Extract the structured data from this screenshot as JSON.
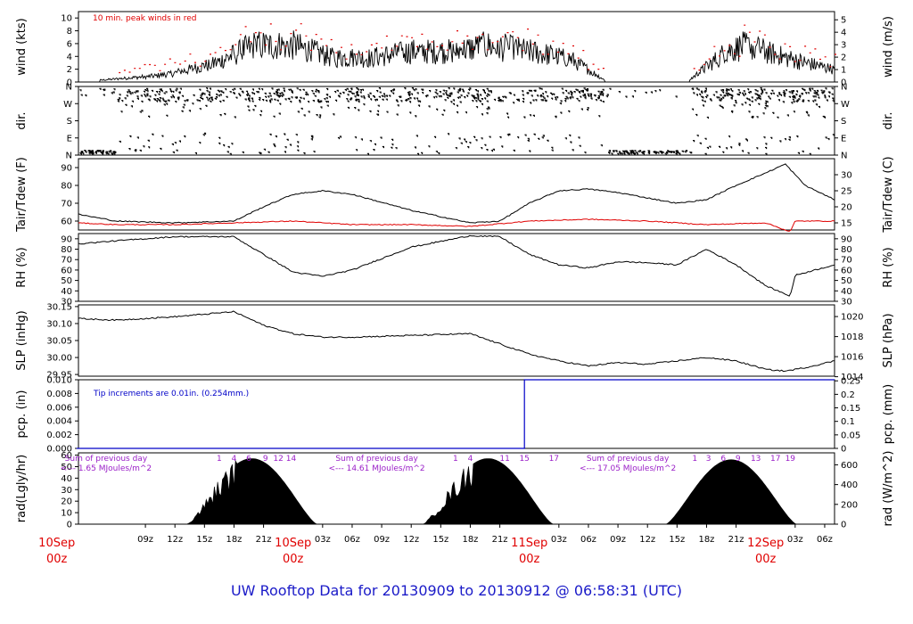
{
  "title": "UW Rooftop Data for 20130909  to  20130912 @ 06:58:31  (UTC)",
  "colors": {
    "title": "#1a1ac8",
    "day": "#e00000",
    "annot": "#9a1fc8",
    "red": "#e00000",
    "blue": "#0000c8"
  },
  "x_axis": {
    "hour_labels": [
      "09z",
      "12z",
      "15z",
      "18z",
      "21z",
      "03z",
      "06z",
      "09z",
      "12z",
      "15z",
      "18z",
      "21z",
      "03z",
      "06z",
      "09z",
      "12z",
      "15z",
      "18z",
      "21z",
      "03z",
      "06z"
    ],
    "hour_values": [
      33,
      36,
      39,
      42,
      45,
      51,
      54,
      57,
      60,
      63,
      66,
      69,
      75,
      78,
      81,
      84,
      87,
      90,
      93,
      99,
      102
    ],
    "day_labels": [
      {
        "date": "10Sep",
        "hour": "00z",
        "t": 24
      },
      {
        "date": "10Sep",
        "hour": "00z",
        "t": 48
      },
      {
        "date": "11Sep",
        "hour": "00z",
        "t": 72
      },
      {
        "date": "12Sep",
        "hour": "00z",
        "t": 96
      }
    ],
    "t_range": [
      26.2,
      103.0
    ]
  },
  "panels": {
    "wind": {
      "ylabel_left": "wind (kts)",
      "ylabel_right": "wind (m/s)",
      "left_ticks": [
        "0",
        "2",
        "4",
        "6",
        "8",
        "10"
      ],
      "right_ticks": [
        "0",
        "1",
        "2",
        "3",
        "4",
        "5"
      ],
      "note": "10 min. peak winds in red"
    },
    "dir": {
      "ylabel_left": "dir.",
      "ylabel_right": "dir.",
      "left_ticks": [
        "N",
        "E",
        "S",
        "W",
        "N"
      ],
      "right_ticks": [
        "N",
        "E",
        "S",
        "W",
        "N"
      ]
    },
    "tair": {
      "ylabel_left": "Tair/Tdew (F)",
      "ylabel_right": "Tair/Tdew (C)",
      "left_ticks": [
        "60",
        "70",
        "80",
        "90"
      ],
      "right_ticks": [
        "15",
        "20",
        "25",
        "30"
      ]
    },
    "rh": {
      "ylabel_left": "RH (%)",
      "ylabel_right": "RH (%)",
      "left_ticks": [
        "30",
        "40",
        "50",
        "60",
        "70",
        "80",
        "90"
      ],
      "right_ticks": [
        "30",
        "40",
        "50",
        "60",
        "70",
        "80",
        "90"
      ]
    },
    "slp": {
      "ylabel_left": "SLP (inHg)",
      "ylabel_right": "SLP (hPa)",
      "left_ticks": [
        "29.95",
        "30.00",
        "30.05",
        "30.10",
        "30.15"
      ],
      "right_ticks": [
        "1014",
        "1016",
        "1018",
        "1020"
      ]
    },
    "pcp": {
      "ylabel_left": "pcp. (in)",
      "ylabel_right": "pcp. (mm)",
      "left_ticks": [
        "0.000",
        "0.002",
        "0.004",
        "0.006",
        "0.008",
        "0.010"
      ],
      "right_ticks": [
        "0",
        "0.05",
        "0.1",
        "0.15",
        "0.2",
        "0.25"
      ],
      "note": "Tip increments are 0.01in. (0.254mm.)"
    },
    "rad": {
      "ylabel_left": "rad(Lgly/hr)",
      "ylabel_right": "rad (W/m^2)",
      "left_ticks": [
        "0",
        "10",
        "20",
        "30",
        "40",
        "50",
        "60"
      ],
      "right_ticks": [
        "0",
        "200",
        "400",
        "600"
      ],
      "annotations": [
        {
          "line1": "Sum of previous day",
          "line2": "<--- 1.65 MJoules/m^2",
          "t": 29
        },
        {
          "line1": "Sum of previous day",
          "line2": "<--- 14.61 MJoules/m^2",
          "t": 56.5
        },
        {
          "line1": "Sum of previous day",
          "line2": "<--- 17.05 MJoules/m^2",
          "t": 82
        }
      ],
      "hour_marks": [
        {
          "text": "1",
          "t": 40.5
        },
        {
          "text": "4",
          "t": 42
        },
        {
          "text": "6",
          "t": 43.5
        },
        {
          "text": "9",
          "t": 45.2
        },
        {
          "text": "12",
          "t": 46.5
        },
        {
          "text": "14",
          "t": 47.8
        },
        {
          "text": "1",
          "t": 64.5
        },
        {
          "text": "4",
          "t": 66
        },
        {
          "text": "11",
          "t": 69.5
        },
        {
          "text": "15",
          "t": 71.5
        },
        {
          "text": "17",
          "t": 74.5
        },
        {
          "text": "1",
          "t": 88.8
        },
        {
          "text": "3",
          "t": 90.2
        },
        {
          "text": "6",
          "t": 91.7
        },
        {
          "text": "9",
          "t": 93.2
        },
        {
          "text": "13",
          "t": 95
        },
        {
          "text": "17",
          "t": 97
        },
        {
          "text": "19",
          "t": 98.5
        }
      ]
    }
  },
  "chart_data": {
    "type": "line",
    "title": "UW Rooftop Data for 20130909  to  20130912 @ 06:58:31  (UTC)",
    "x_units": "hours since 2013-09-09 00z",
    "series": [
      {
        "name": "Tair (F)",
        "x": [
          26,
          30,
          36,
          42,
          45,
          48,
          51,
          54,
          60,
          66,
          69,
          72,
          75,
          78,
          81,
          84,
          87,
          90,
          93,
          96,
          98,
          100,
          103
        ],
        "values": [
          64,
          60,
          59,
          60,
          68,
          75,
          77,
          75,
          66,
          59,
          60,
          70,
          77,
          78,
          76,
          73,
          70,
          72,
          80,
          87,
          92,
          80,
          72
        ]
      },
      {
        "name": "Tdew (F)",
        "x": [
          26,
          30,
          36,
          42,
          48,
          54,
          60,
          66,
          72,
          78,
          84,
          90,
          96,
          98.5,
          99,
          103
        ],
        "values": [
          59,
          58,
          58,
          59,
          60,
          58,
          58,
          57,
          60,
          61,
          60,
          58,
          59,
          54,
          60,
          60
        ]
      },
      {
        "name": "RH (%)",
        "x": [
          26,
          30,
          36,
          42,
          45,
          48,
          51,
          54,
          60,
          66,
          69,
          72,
          75,
          78,
          81,
          84,
          87,
          90,
          93,
          96,
          98.5,
          99,
          103
        ],
        "values": [
          85,
          88,
          92,
          92,
          75,
          58,
          54,
          60,
          82,
          93,
          92,
          75,
          65,
          62,
          68,
          67,
          65,
          80,
          65,
          45,
          35,
          55,
          65
        ]
      },
      {
        "name": "SLP (inHg)",
        "x": [
          26,
          30,
          36,
          42,
          45,
          48,
          51,
          54,
          60,
          66,
          69,
          72,
          75,
          78,
          81,
          84,
          87,
          90,
          93,
          96,
          98,
          100,
          103
        ],
        "values": [
          30.115,
          30.11,
          30.12,
          30.135,
          30.095,
          30.07,
          30.06,
          30.06,
          30.065,
          30.07,
          30.04,
          30.01,
          29.99,
          29.975,
          29.985,
          29.98,
          29.99,
          30.0,
          29.99,
          29.965,
          29.96,
          29.97,
          29.99
        ]
      },
      {
        "name": "Precip (in)",
        "x": [
          26,
          71.5,
          71.5,
          103
        ],
        "values": [
          0,
          0,
          0.01,
          0.01
        ]
      },
      {
        "name": "Wind (kts)",
        "x": [
          26,
          34,
          36,
          40,
          44,
          48,
          52,
          56,
          60,
          64,
          68,
          72,
          76,
          80,
          84,
          88,
          92,
          94,
          98,
          103
        ],
        "values": [
          0,
          1,
          1.5,
          3,
          6,
          6,
          4,
          4,
          5,
          5,
          6,
          5,
          4,
          0,
          0,
          0,
          5,
          6,
          4,
          2
        ]
      },
      {
        "name": "Radiation (Lgly/hr)",
        "peaks": [
          {
            "t": 43.8,
            "value": 57
          },
          {
            "t": 67.8,
            "value": 57
          },
          {
            "t": 92.5,
            "value": 56
          }
        ]
      }
    ],
    "wind_ylim": [
      0,
      11
    ],
    "tair_ylim": [
      55,
      95
    ],
    "rh_ylim": [
      30,
      95
    ],
    "slp_ylim": [
      29.945,
      30.155
    ],
    "pcp_ylim": [
      0,
      0.01
    ],
    "rad_ylim": [
      0,
      62
    ]
  }
}
